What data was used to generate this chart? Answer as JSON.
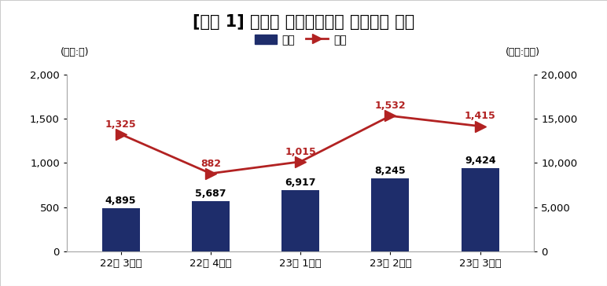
{
  "title": "[그림 1] 분기별 주식관련사채 권리행사 현황",
  "categories": [
    "22년 3분기",
    "22년 4분기",
    "23년 1분기",
    "23년 2분기",
    "23년 3분기"
  ],
  "bar_values": [
    4895,
    5687,
    6917,
    8245,
    9424
  ],
  "line_values": [
    1325,
    882,
    1015,
    1532,
    1415
  ],
  "bar_color": "#1e2d6b",
  "line_color": "#b22222",
  "left_unit": "(단위:건)",
  "right_unit": "(단위:억원)",
  "left_ylim": [
    0,
    2000
  ],
  "right_ylim": [
    0,
    20000
  ],
  "left_yticks": [
    0,
    500,
    1000,
    1500,
    2000
  ],
  "right_yticks": [
    0,
    5000,
    10000,
    15000,
    20000
  ],
  "legend_amount": "금액",
  "legend_count": "건수",
  "background_color": "#ffffff",
  "title_fontsize": 15,
  "tick_fontsize": 9.5,
  "bar_label_fontsize": 9,
  "line_label_fontsize": 9
}
